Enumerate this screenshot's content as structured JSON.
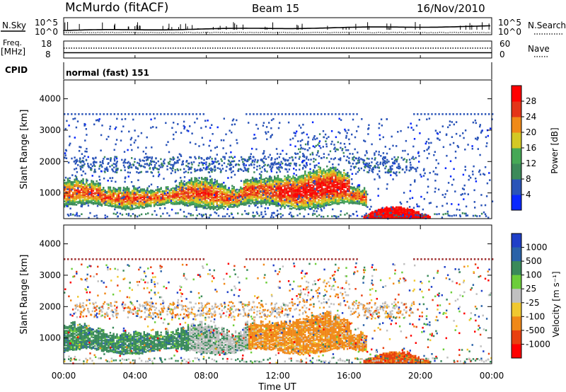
{
  "header": {
    "station": "McMurdo (fitACF)",
    "beam": "Beam 15",
    "date": "16/Nov/2010"
  },
  "strip_panels": {
    "nsky_label": "N.Sky",
    "nsky_ticks": [
      "10^5",
      "10^0"
    ],
    "nsearch_label": "N.Search",
    "nsearch_ticks": [
      "10^5",
      "10^0"
    ],
    "freq_label_1": "Freq.",
    "freq_label_2": "[MHz]",
    "freq_ticks": [
      "18",
      "8"
    ],
    "nave_label": "Nave",
    "nave_ticks": [
      "60",
      "0"
    ],
    "cpid_label": "CPID",
    "cpid_value": "normal (fast) 151"
  },
  "chart_data": [
    {
      "type": "heatmap",
      "name": "power",
      "ylabel": "Slant Range [km]",
      "yticks": [
        "1000",
        "2000",
        "3000",
        "4000"
      ],
      "ylim": [
        180,
        4600
      ],
      "colorbar": {
        "label": "Power [dB]",
        "ticks": [
          "4",
          "8",
          "12",
          "16",
          "20",
          "24",
          "28"
        ],
        "colors": [
          "#0a28ff",
          "#2a54b8",
          "#3c8a5a",
          "#46a856",
          "#d4c824",
          "#f08a18",
          "#e43418",
          "#ff0000"
        ]
      },
      "features": [
        {
          "t0": 0.0,
          "t1": 17.0,
          "r0": 480,
          "r1": 1600,
          "desc": "main echo band"
        },
        {
          "t0": 17.0,
          "t1": 19.5,
          "r0": 180,
          "r1": 550,
          "desc": "near range strong echo"
        },
        {
          "t0": 0.0,
          "t1": 24.0,
          "r0": 3500,
          "r1": 3520,
          "desc": "range line"
        }
      ]
    },
    {
      "type": "heatmap",
      "name": "velocity",
      "ylabel": "Slant Range [km]",
      "yticks": [
        "1000",
        "2000",
        "3000",
        "4000"
      ],
      "ylim": [
        180,
        4600
      ],
      "colorbar": {
        "label": "Velocity [m s⁻¹]",
        "ticks": [
          "1000",
          "500",
          "100",
          "25",
          "-25",
          "-100",
          "-500",
          "-1000"
        ],
        "colors": [
          "#1f3fc8",
          "#2a62a8",
          "#3a8a5a",
          "#6ccd3a",
          "#c0c0c0",
          "#f0c830",
          "#f08818",
          "#e84010",
          "#ff0000"
        ]
      },
      "xlabel": "Time UT",
      "xticks": [
        "00:00",
        "04:00",
        "08:00",
        "12:00",
        "16:00",
        "20:00",
        "00:00"
      ]
    }
  ]
}
